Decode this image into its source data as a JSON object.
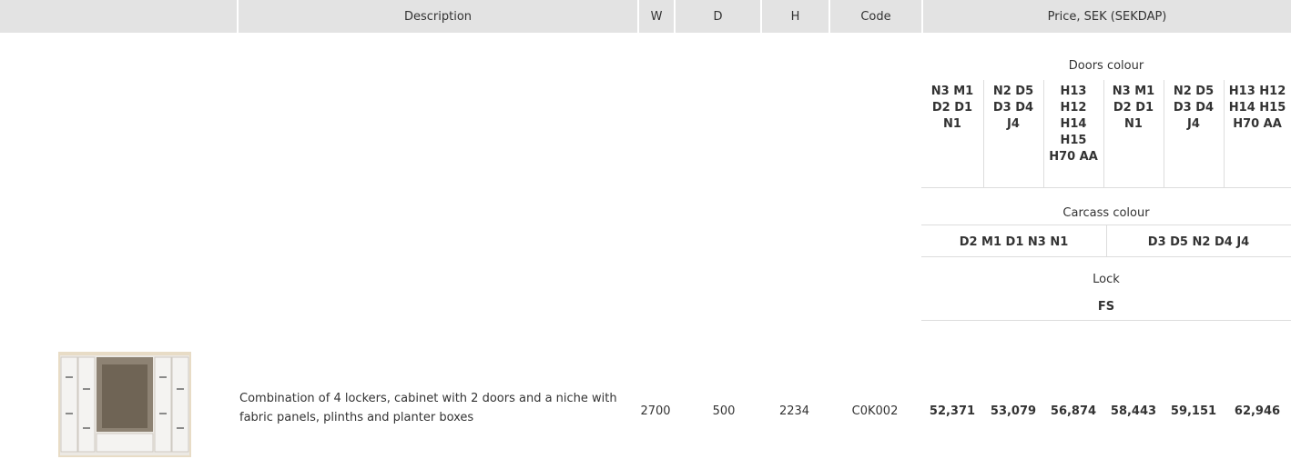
{
  "header": {
    "columns": [
      "Description",
      "W",
      "D",
      "H",
      "Code",
      "Price, SEK (SEKDAP)"
    ]
  },
  "price_header": {
    "doors_title": "Doors colour",
    "doors": [
      "N3 M1 D2 D1 N1",
      "N2 D5 D3 D4 J4",
      "H13 H12 H14 H15 H70 AA",
      "N3 M1 D2 D1 N1",
      "N2 D5 D3 D4 J4",
      "H13 H12 H14 H15 H70 AA"
    ],
    "carcass_title": "Carcass colour",
    "carcass": [
      "D2 M1 D1 N3 N1",
      "D3 D5 N2 D4 J4"
    ],
    "lock_title": "Lock",
    "lock": "FS"
  },
  "rows": [
    {
      "description": "Combination of 4 lockers, cabinet with 2 doors and a niche with fabric panels, plinths and planter boxes",
      "w": 2700,
      "d": 500,
      "h": 2234,
      "code": "C0K002",
      "prices": [
        "52,371",
        "53,079",
        "56,874",
        "58,443",
        "59,151",
        "62,946"
      ]
    }
  ]
}
